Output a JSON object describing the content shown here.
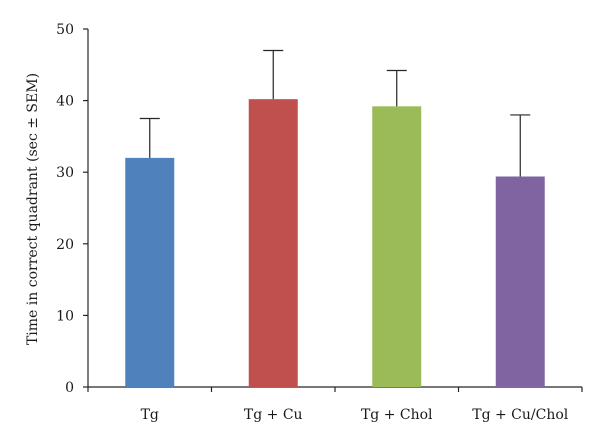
{
  "chart_data": {
    "type": "bar",
    "title": "",
    "xlabel": "",
    "ylabel": "Time in correct quadrant (sec ± SEM)",
    "ylim": [
      0,
      50
    ],
    "yticks": [
      0,
      10,
      20,
      30,
      40,
      50
    ],
    "categories": [
      "Tg",
      "Tg + Cu",
      "Tg + Chol",
      "Tg + Cu/Chol"
    ],
    "values": [
      32.0,
      40.2,
      39.2,
      29.4
    ],
    "errors": [
      5.5,
      6.8,
      5.0,
      8.6
    ],
    "colors": [
      "#4f81bd",
      "#c0504d",
      "#9bbb59",
      "#8064a2"
    ],
    "error_bars": "upper",
    "grid": false,
    "legend": "none"
  }
}
